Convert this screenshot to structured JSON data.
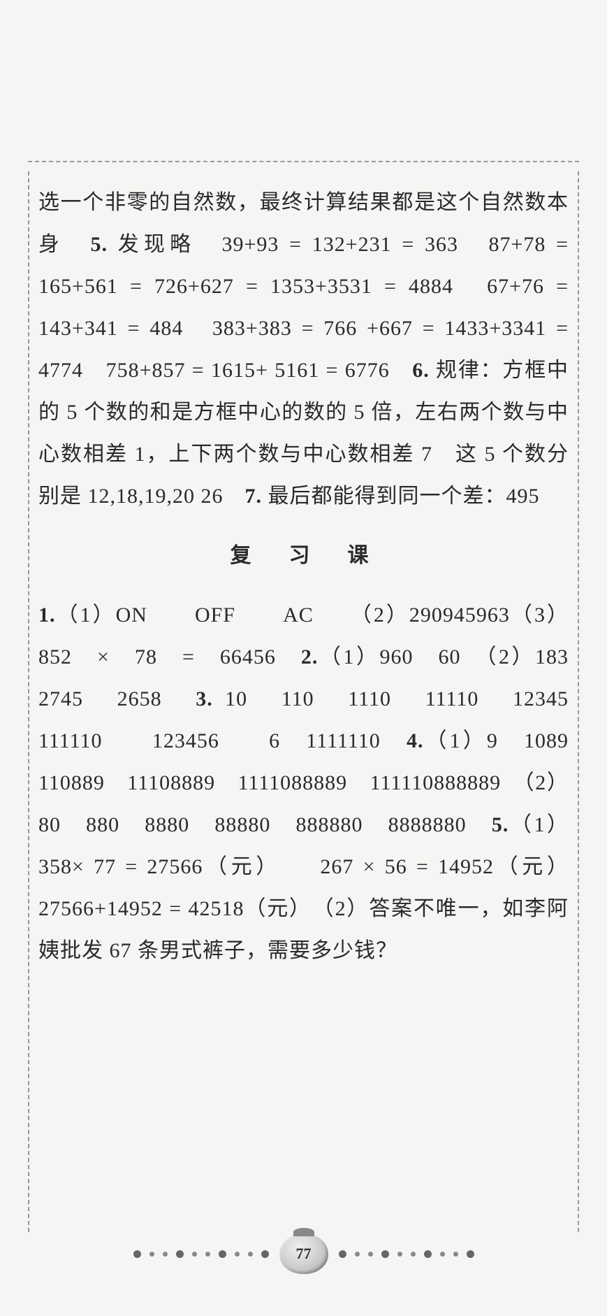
{
  "page": {
    "number": "77"
  },
  "upper_section": {
    "p1": "选一个非零的自然数，最终计算结果都是这个自然数本身　",
    "p1_bold": "5.",
    "p1_cont": " 发现略　39+93 = 132+231 = 363　87+78 = 165+561 = 726+627 = 1353+3531 = 4884　67+76 = 143+341 = 484　383+383 = 766 +667 = 1433+3341 = 4774　758+857 = 1615+ 5161 = 6776　",
    "p1_bold2": "6.",
    "p1_cont2": " 规律：方框中的 5 个数的和是方框中心的数的 5 倍，左右两个数与中心数相差 1，上下两个数与中心数相差 7　这 5 个数分别是 12,18,19,20 26　",
    "p1_bold3": "7.",
    "p1_cont3": " 最后都能得到同一个差：495"
  },
  "section_title": "复　习　课",
  "lower_section": {
    "l1_bold": "1.",
    "l1": "（1）ON　　OFF　　AC　　（2）290945963（3）852　×　78　=　66456　",
    "l2_bold": "2.",
    "l2": "（1）960　60　（2）183　2745　2658　",
    "l3_bold": "3.",
    "l3": " 10　110　1110　11110　12345　　111110　　123456　　6　1111110　",
    "l4_bold": "4.",
    "l4": "（1）9　1089　110889　11108889　1111088889　111110888889　（2）80　880　8880　88880　888880　8888880　",
    "l5_bold": "5.",
    "l5": "（1）358× 77 = 27566（元）　　267 × 56 = 14952（元）27566+14952 = 42518（元）　（2）答案不唯一，如李阿姨批发 67 条男式裤子，需要多少钱？"
  }
}
